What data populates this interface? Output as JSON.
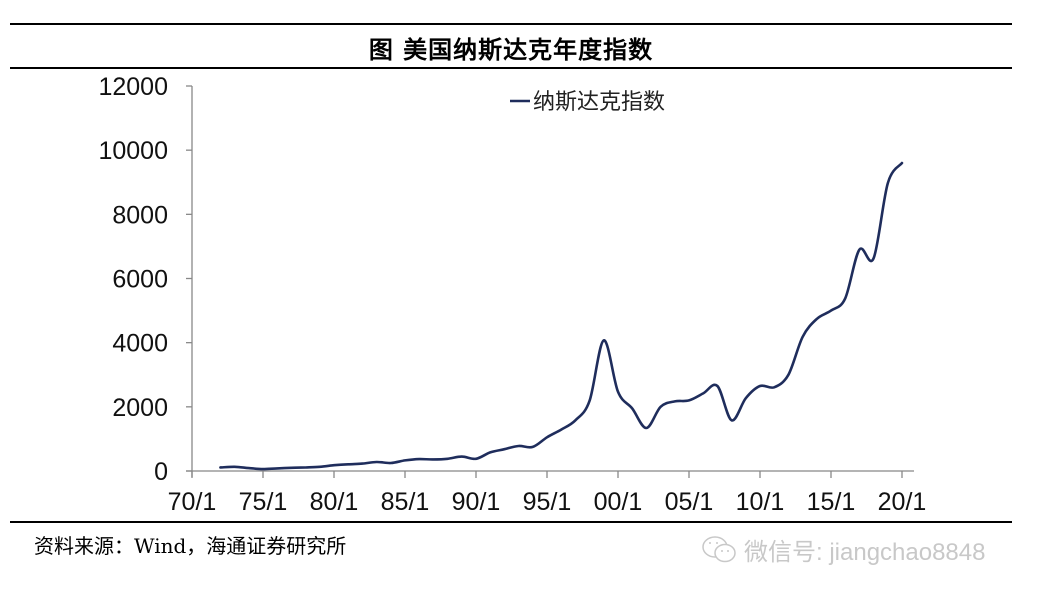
{
  "figure": {
    "title": "图  美国纳斯达克年度指数",
    "source": "资料来源：Wind，海通证券研究所",
    "watermark": "微信号: jiangchao8848"
  },
  "chart_data": {
    "type": "line",
    "title": "美国纳斯达克年度指数",
    "xlabel": "",
    "ylabel": "",
    "ylim": [
      0,
      12000
    ],
    "yticks": [
      0,
      2000,
      4000,
      6000,
      8000,
      10000,
      12000
    ],
    "xticks": [
      "70/1",
      "75/1",
      "80/1",
      "85/1",
      "90/1",
      "95/1",
      "00/1",
      "05/1",
      "10/1",
      "15/1",
      "20/1"
    ],
    "grid": false,
    "legend": {
      "position": "top-center",
      "entries": [
        "纳斯达克指数"
      ]
    },
    "series": [
      {
        "name": "纳斯达克指数",
        "color": "#1f2d5c",
        "x": [
          1972,
          1973,
          1974,
          1975,
          1976,
          1977,
          1978,
          1979,
          1980,
          1981,
          1982,
          1983,
          1984,
          1985,
          1986,
          1987,
          1988,
          1989,
          1990,
          1991,
          1992,
          1993,
          1994,
          1995,
          1996,
          1997,
          1998,
          1999,
          2000,
          2001,
          2002,
          2003,
          2004,
          2005,
          2006,
          2007,
          2008,
          2009,
          2010,
          2011,
          2012,
          2013,
          2014,
          2015,
          2016,
          2017,
          2018,
          2019,
          2020
        ],
        "values": [
          110,
          130,
          90,
          60,
          80,
          100,
          110,
          130,
          180,
          210,
          230,
          280,
          250,
          330,
          370,
          360,
          380,
          450,
          380,
          580,
          680,
          780,
          750,
          1050,
          1290,
          1580,
          2190,
          4070,
          2470,
          1950,
          1340,
          2000,
          2170,
          2200,
          2420,
          2650,
          1580,
          2270,
          2650,
          2610,
          3000,
          4180,
          4740,
          5000,
          5380,
          6900,
          6630,
          8970,
          9600
        ]
      }
    ]
  }
}
